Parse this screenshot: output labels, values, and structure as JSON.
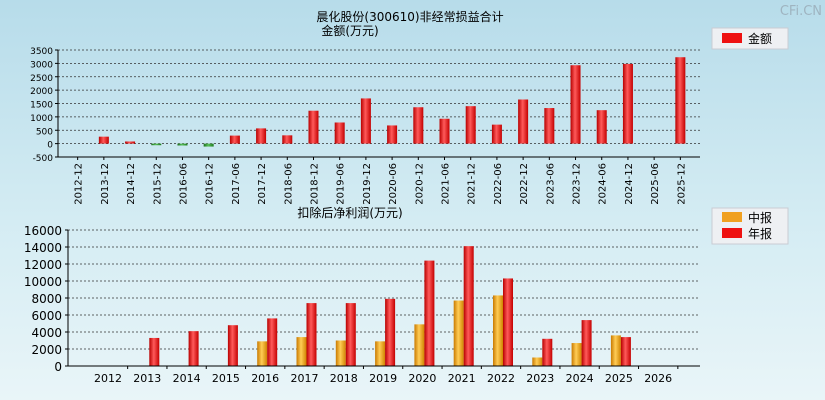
{
  "watermark": "CFi.CN",
  "chart_data": [
    {
      "type": "bar",
      "title": "晨化股份(300610)非经常损益合计",
      "subtitle": "金额(万元)",
      "legend": [
        {
          "label": "金额",
          "color": "#ee1111"
        }
      ],
      "legend_position": "top-right",
      "categories": [
        "2012-12",
        "2013-12",
        "2014-12",
        "2015-12",
        "2016-06",
        "2016-12",
        "2017-06",
        "2017-12",
        "2018-06",
        "2018-12",
        "2019-06",
        "2019-12",
        "2020-06",
        "2020-12",
        "2021-06",
        "2021-12",
        "2022-06",
        "2022-12",
        "2023-06",
        "2023-12",
        "2024-06",
        "2024-12",
        "2025-06",
        "2025-12"
      ],
      "series": [
        {
          "name": "金额",
          "values": [
            0,
            260,
            80,
            -60,
            -70,
            -110,
            300,
            570,
            310,
            1230,
            790,
            1690,
            680,
            1360,
            930,
            1400,
            710,
            1650,
            1330,
            2930,
            1250,
            2980,
            0,
            3230
          ]
        }
      ],
      "positive_color": "#ee1111",
      "negative_color": "#2e9a2e",
      "ylim": [
        -500,
        3500
      ],
      "yticks": [
        -500,
        0,
        500,
        1000,
        1500,
        2000,
        2500,
        3000,
        3500
      ],
      "grid": true
    },
    {
      "type": "bar",
      "title": "扣除后净利润(万元)",
      "legend": [
        {
          "label": "中报",
          "color": "#f0a020"
        },
        {
          "label": "年报",
          "color": "#ee1111"
        }
      ],
      "legend_position": "top-right",
      "categories": [
        "2012",
        "2013",
        "2014",
        "2015",
        "2016",
        "2017",
        "2018",
        "2019",
        "2020",
        "2021",
        "2022",
        "2023",
        "2024",
        "2025",
        "2026"
      ],
      "series": [
        {
          "name": "中报",
          "values": [
            null,
            null,
            null,
            null,
            2900,
            3400,
            3000,
            2900,
            4900,
            7700,
            8300,
            1000,
            2700,
            3600,
            null
          ]
        },
        {
          "name": "年报",
          "values": [
            null,
            3300,
            4100,
            4800,
            5600,
            7400,
            7400,
            7900,
            12400,
            14100,
            10300,
            3200,
            5400,
            3400,
            null
          ]
        }
      ],
      "ylim": [
        0,
        16000
      ],
      "yticks": [
        0,
        2000,
        4000,
        6000,
        8000,
        10000,
        12000,
        14000,
        16000
      ],
      "grid": true
    }
  ]
}
